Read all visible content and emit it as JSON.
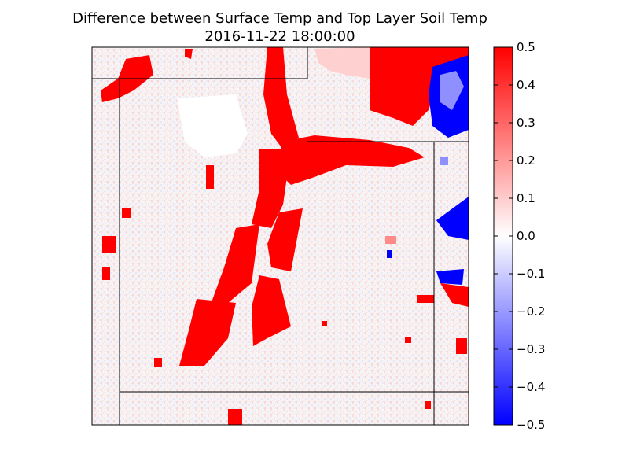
{
  "chart_data": {
    "type": "heatmap",
    "title": "Difference between Surface Temp and Top Layer Soil Temp",
    "subtitle": "2016-11-22 18:00:00",
    "xlabel": "",
    "ylabel": "",
    "colormap": "bwr",
    "colors": {
      "min": "#0000ff",
      "mid": "#ffffff",
      "max": "#ff0000"
    },
    "color_range": [
      -0.5,
      0.5
    ],
    "colorbar_ticks": [
      "0.5",
      "0.4",
      "0.3",
      "0.2",
      "0.1",
      "0.0",
      "−0.1",
      "−0.2",
      "−0.3",
      "−0.4",
      "−0.5"
    ],
    "colorbar_values": [
      0.5,
      0.4,
      0.3,
      0.2,
      0.1,
      0.0,
      -0.1,
      -0.2,
      -0.3,
      -0.4,
      -0.5
    ],
    "grid": false,
    "description": "Spatial field of temperature difference; mostly near zero, with large positive (red, ~0.5) regions forming a diagonal band and a cluster at the top-right, and negative (blue, ~-0.5) patches along the right edge."
  }
}
